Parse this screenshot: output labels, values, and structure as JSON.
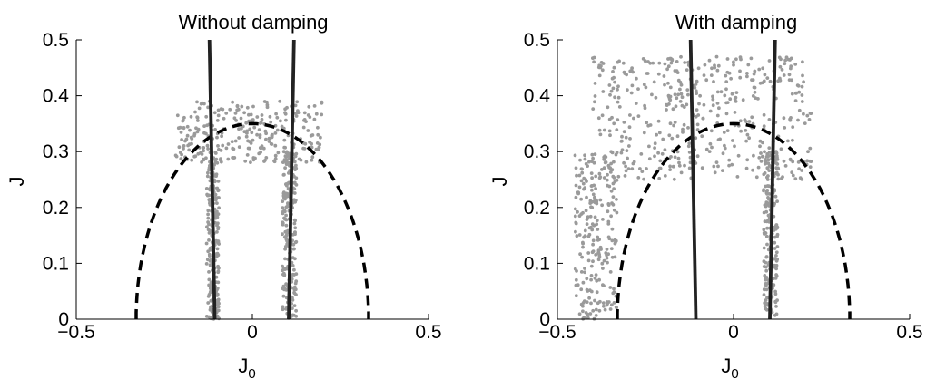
{
  "chart_data": [
    {
      "type": "scatter",
      "title": "Without damping",
      "xlabel": "J",
      "xlabel_sub": "0",
      "ylabel": "J",
      "xlim": [
        -0.5,
        0.5
      ],
      "ylim": [
        0,
        0.5
      ],
      "x_ticks": [
        "−0.5",
        "0",
        "0.5"
      ],
      "y_ticks": [
        "0",
        "0.1",
        "0.2",
        "0.3",
        "0.4",
        "0.5"
      ],
      "grid": false,
      "dashed_curve": {
        "center": 0.0,
        "half_width": 0.33,
        "peak": 0.35
      },
      "solid_lines": [
        {
          "x_at_bottom": -0.107,
          "x_at_top": -0.122
        },
        {
          "x_at_bottom": 0.103,
          "x_at_top": 0.118
        }
      ],
      "point_clusters": [
        {
          "x_range": [
            -0.13,
            -0.095
          ],
          "y_range": [
            0.0,
            0.3
          ],
          "count": 230
        },
        {
          "x_range": [
            0.085,
            0.125
          ],
          "y_range": [
            0.0,
            0.3
          ],
          "count": 230
        },
        {
          "x_range": [
            -0.22,
            0.2
          ],
          "y_range": [
            0.28,
            0.39
          ],
          "count": 280
        }
      ]
    },
    {
      "type": "scatter",
      "title": "With damping",
      "xlabel": "J",
      "xlabel_sub": "0",
      "ylabel": "J",
      "xlim": [
        -0.5,
        0.5
      ],
      "ylim": [
        0,
        0.5
      ],
      "x_ticks": [
        "−0.5",
        "0",
        "0.5"
      ],
      "y_ticks": [
        "0",
        "0.1",
        "0.2",
        "0.3",
        "0.4",
        "0.5"
      ],
      "grid": false,
      "dashed_curve": {
        "center": 0.0,
        "half_width": 0.33,
        "peak": 0.35
      },
      "solid_lines": [
        {
          "x_at_bottom": -0.107,
          "x_at_top": -0.122
        },
        {
          "x_at_bottom": 0.103,
          "x_at_top": 0.118
        }
      ],
      "point_clusters": [
        {
          "x_range": [
            -0.45,
            -0.33
          ],
          "y_range": [
            0.0,
            0.3
          ],
          "count": 230
        },
        {
          "x_range": [
            -0.4,
            0.22
          ],
          "y_range": [
            0.25,
            0.47
          ],
          "count": 480
        },
        {
          "x_range": [
            0.085,
            0.125
          ],
          "y_range": [
            0.0,
            0.3
          ],
          "count": 200
        }
      ]
    }
  ]
}
